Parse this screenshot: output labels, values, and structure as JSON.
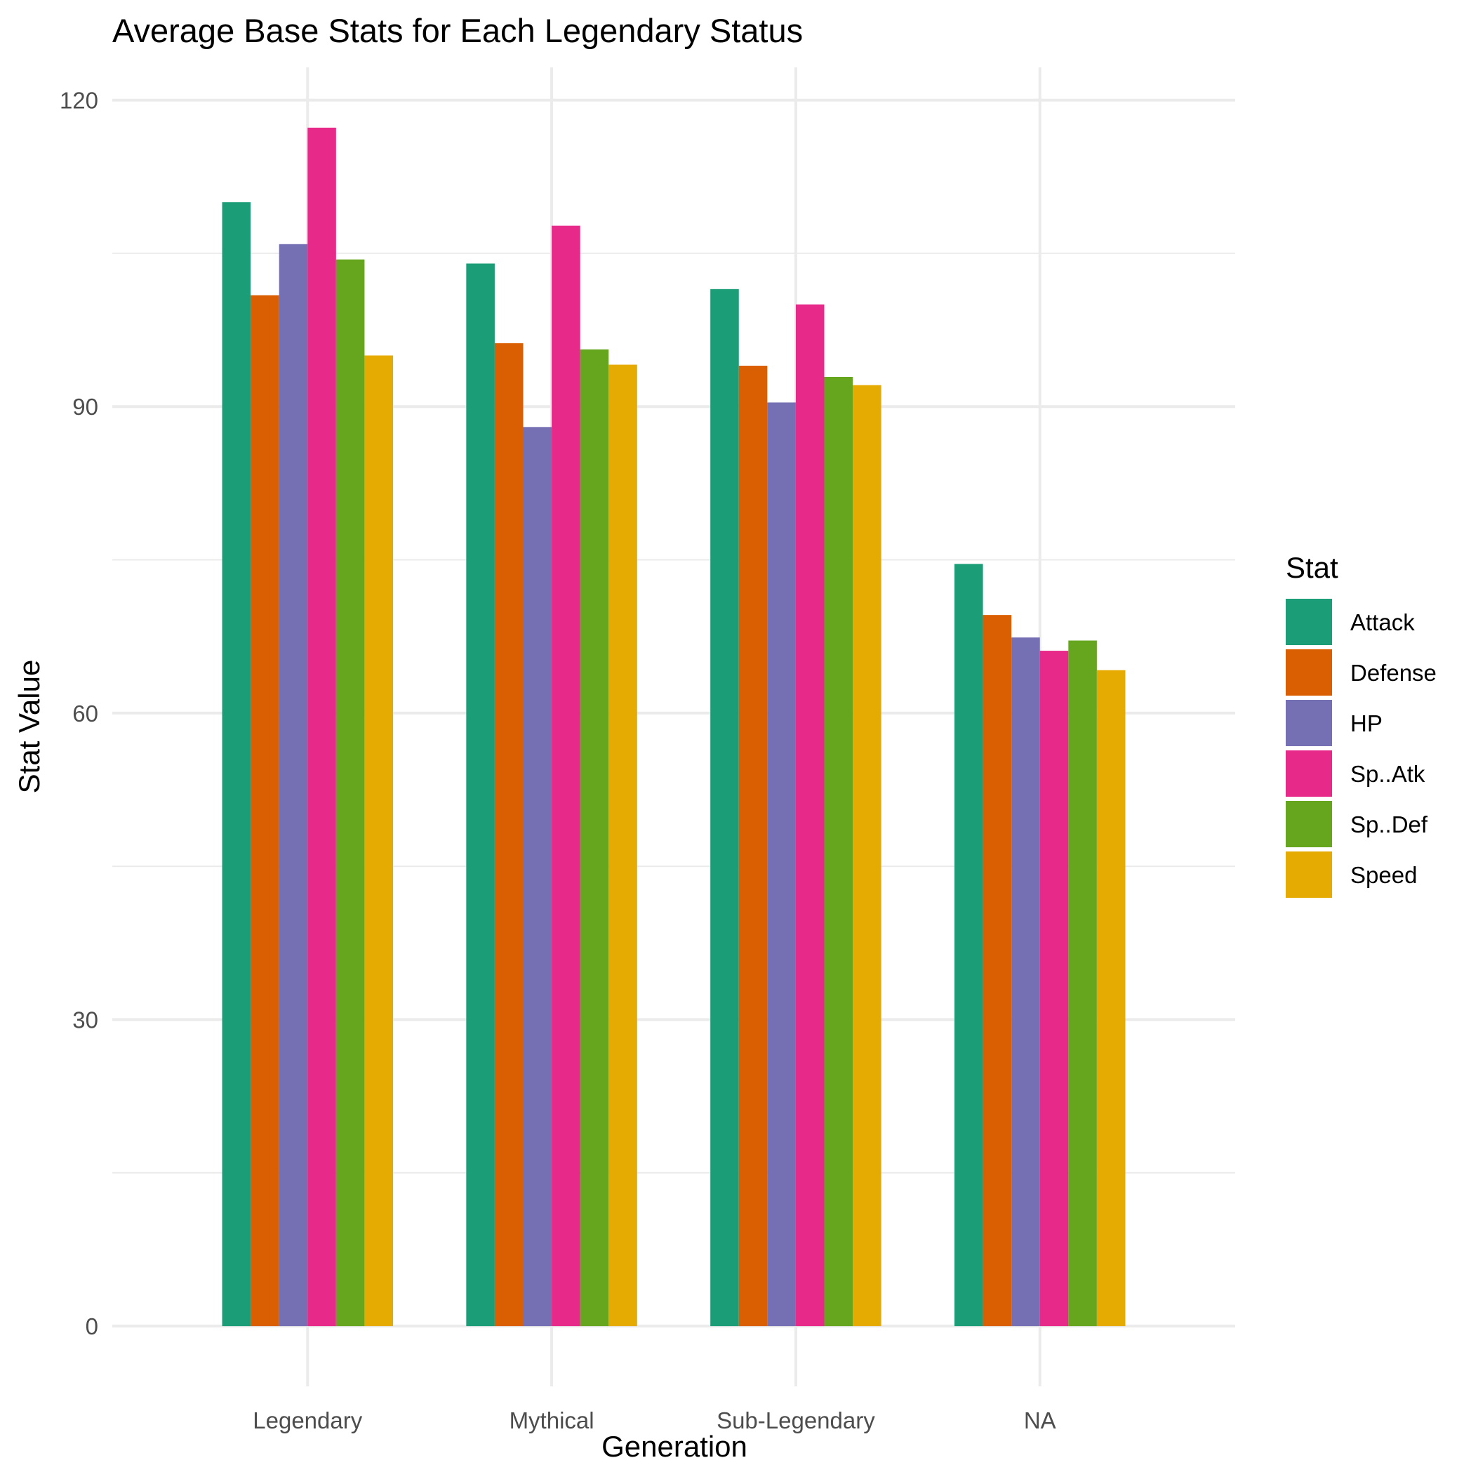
{
  "chart_data": {
    "type": "bar",
    "title": "Average Base Stats for Each Legendary Status",
    "xlabel": "Generation",
    "ylabel": "Stat Value",
    "categories": [
      "Legendary",
      "Mythical",
      "Sub-Legendary",
      "NA"
    ],
    "series": [
      {
        "name": "Attack",
        "color": "#1b9e77",
        "values": [
          110.0,
          104.0,
          101.5,
          74.6
        ]
      },
      {
        "name": "Defense",
        "color": "#d95f02",
        "values": [
          100.9,
          96.2,
          94.0,
          69.6
        ]
      },
      {
        "name": "HP",
        "color": "#7570b3",
        "values": [
          105.9,
          88.0,
          90.4,
          67.4
        ]
      },
      {
        "name": "Sp..Atk",
        "color": "#e7298a",
        "values": [
          117.3,
          107.7,
          100.0,
          66.1
        ]
      },
      {
        "name": "Sp..Def",
        "color": "#66a61e",
        "values": [
          104.4,
          95.6,
          92.9,
          67.1
        ]
      },
      {
        "name": "Speed",
        "color": "#e6ab02",
        "values": [
          95.0,
          94.1,
          92.1,
          64.2
        ]
      }
    ],
    "ylim": [
      -5.9,
      123.2
    ],
    "yticks": [
      "0",
      "30",
      "60",
      "90",
      "120"
    ],
    "grid": true,
    "legend": {
      "title": "Stat",
      "position": "right"
    }
  }
}
